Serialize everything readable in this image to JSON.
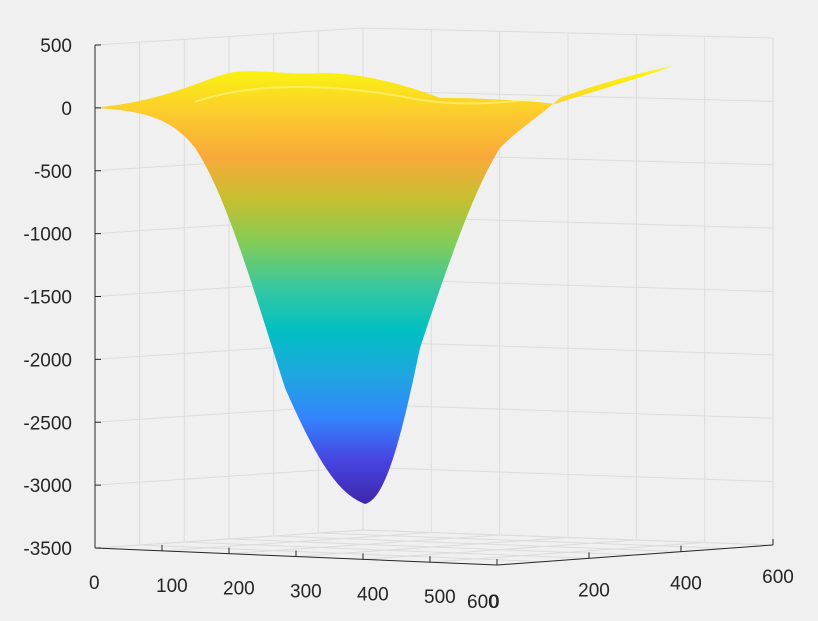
{
  "chart_data": {
    "type": "surface",
    "title": "",
    "xlabel": "",
    "ylabel": "",
    "zlabel": "",
    "grid": true,
    "colormap": "parula",
    "colormap_colors": [
      "#3e26a8",
      "#4743e0",
      "#3384fc",
      "#1fa7e0",
      "#00bfc2",
      "#37c8a0",
      "#81cc59",
      "#c4c030",
      "#f9a93a",
      "#fccb2d",
      "#f9f40f"
    ],
    "axis_color": "#262626",
    "grid_color": "#dcdcdc",
    "background": "#f0f0f0",
    "z_ticks": [
      "500",
      "0",
      "-500",
      "-1000",
      "-1500",
      "-2000",
      "-2500",
      "-3000",
      "-3500"
    ],
    "z_range": [
      -3500,
      500
    ],
    "x_ticks": [
      "0",
      "100",
      "200",
      "300",
      "400",
      "500",
      "600"
    ],
    "y_ticks": [
      "0",
      "200",
      "400",
      "600"
    ],
    "x_range": [
      0,
      600
    ],
    "y_range": [
      0,
      600
    ],
    "surface_min_z": -3150,
    "surface_rim_z": 0
  }
}
